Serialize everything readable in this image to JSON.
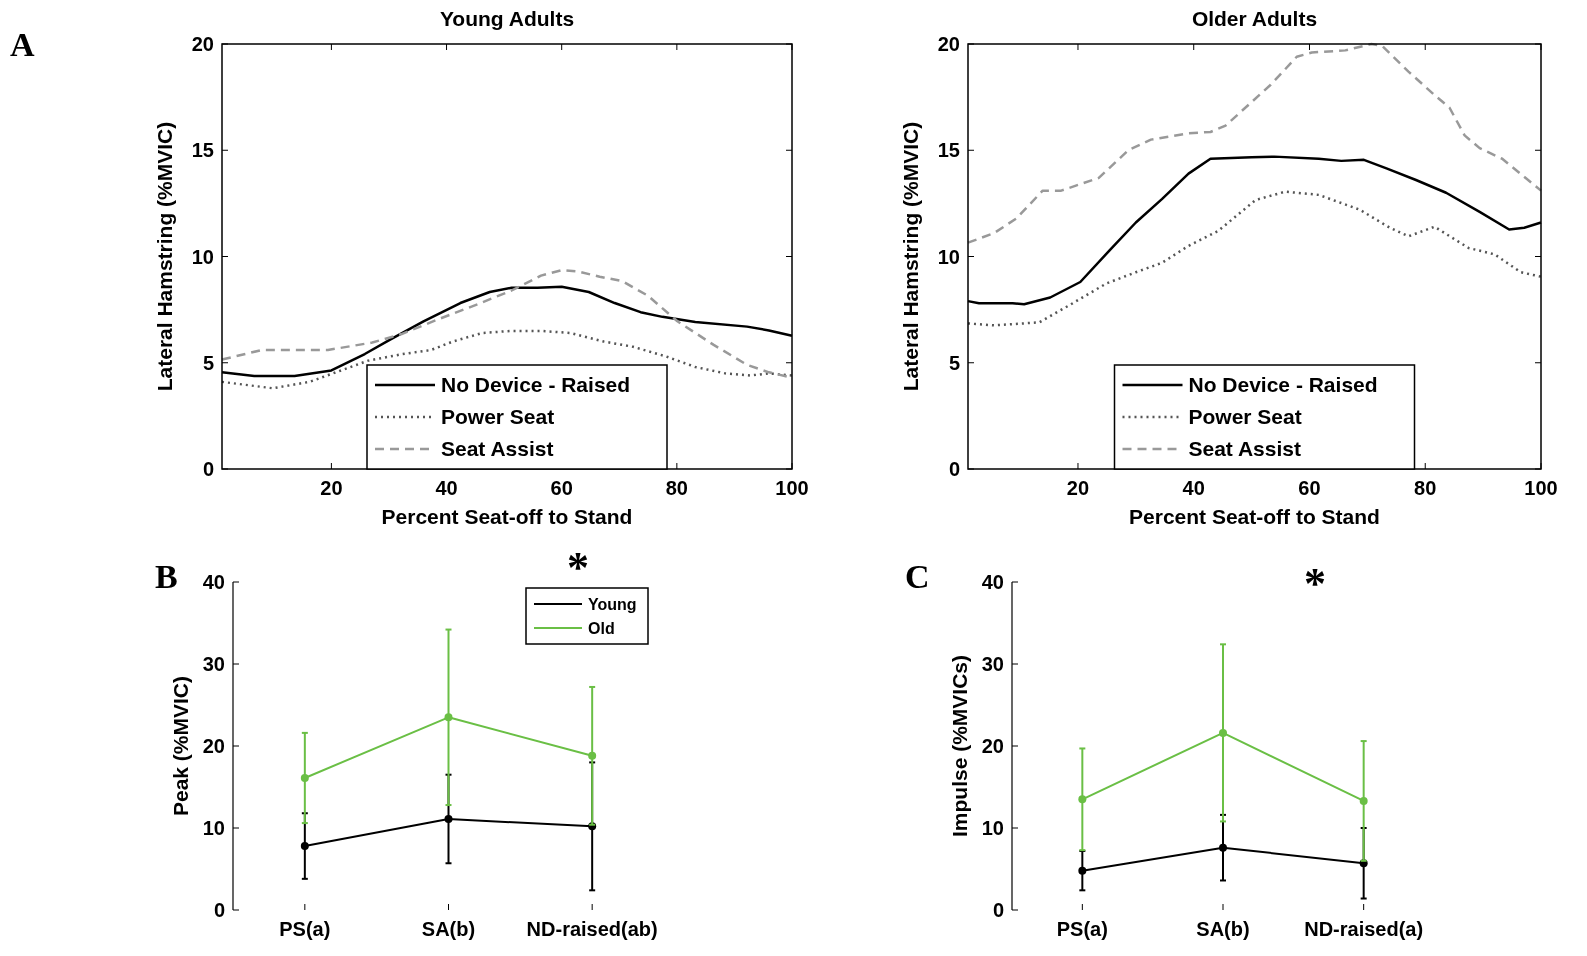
{
  "chart_data": [
    {
      "type": "line",
      "title": "Young Adults",
      "xlabel": "Percent Seat-off to Stand",
      "ylabel": "Lateral Hamstring (%MVIC)",
      "xlim": [
        1,
        100
      ],
      "ylim": [
        0,
        20
      ],
      "xticks": [
        20,
        40,
        60,
        80,
        100
      ],
      "yticks": [
        0,
        5,
        10,
        15,
        20
      ],
      "legend": "bottom",
      "annotations": [
        "A"
      ],
      "series": [
        {
          "name": "No Device - Raised",
          "color": "#000000",
          "line_style": "solid",
          "x": [
            1,
            6.6,
            13.6,
            20,
            25.8,
            30.2,
            36,
            42.4,
            47.5,
            51.3,
            55.8,
            60,
            64.7,
            69.2,
            73.7,
            77.5,
            83.2,
            92.2,
            96,
            100
          ],
          "values": [
            4.55,
            4.38,
            4.38,
            4.64,
            5.41,
            6.09,
            6.95,
            7.81,
            8.33,
            8.53,
            8.53,
            8.58,
            8.33,
            7.81,
            7.38,
            7.16,
            6.92,
            6.7,
            6.52,
            6.27
          ]
        },
        {
          "name": "Power Seat",
          "color": "#555555",
          "line_style": "dotted",
          "x": [
            1,
            9.8,
            16.2,
            21.3,
            26.4,
            32.2,
            37.3,
            41.1,
            46.2,
            51.3,
            56.4,
            61.5,
            67.3,
            72.4,
            78.1,
            83.2,
            88.4,
            92.8,
            96,
            100
          ],
          "values": [
            4.1,
            3.8,
            4.1,
            4.6,
            5.1,
            5.4,
            5.6,
            6,
            6.4,
            6.5,
            6.5,
            6.4,
            6,
            5.75,
            5.3,
            4.8,
            4.5,
            4.4,
            4.5,
            4.4
          ]
        },
        {
          "name": "Seat Assist",
          "color": "#999999",
          "line_style": "dashed",
          "x": [
            1,
            7.9,
            19.4,
            27.1,
            32.2,
            38.5,
            44.9,
            51.3,
            56.4,
            60,
            62.8,
            66.6,
            70.5,
            75,
            80.1,
            86.4,
            92.2,
            96,
            100
          ],
          "values": [
            5.15,
            5.6,
            5.6,
            5.95,
            6.35,
            7.04,
            7.7,
            8.4,
            9.1,
            9.36,
            9.3,
            9.05,
            8.84,
            8.15,
            6.95,
            5.84,
            4.9,
            4.55,
            4.3
          ]
        }
      ]
    },
    {
      "type": "line",
      "title": "Older Adults",
      "xlabel": "Percent Seat-off to Stand",
      "ylabel": "Lateral Hamstring (%MVIC)",
      "xlim": [
        1,
        100
      ],
      "ylim": [
        0,
        20
      ],
      "xticks": [
        20,
        40,
        60,
        80,
        100
      ],
      "yticks": [
        0,
        5,
        10,
        15,
        20
      ],
      "legend": "bottom",
      "series": [
        {
          "name": "No Device - Raised",
          "color": "#000000",
          "line_style": "solid",
          "x": [
            1,
            2.9,
            8.7,
            10.7,
            15.2,
            20.4,
            25.5,
            30,
            34.5,
            39.1,
            42.9,
            50,
            53.9,
            61.6,
            65.5,
            69.4,
            73.3,
            78.4,
            83.6,
            89.4,
            94.5,
            97.1,
            100
          ],
          "values": [
            7.9,
            7.8,
            7.8,
            7.75,
            8.07,
            8.8,
            10.3,
            11.6,
            12.7,
            13.9,
            14.6,
            14.67,
            14.7,
            14.6,
            14.5,
            14.55,
            14.15,
            13.6,
            13,
            12.1,
            11.27,
            11.35,
            11.6
          ]
        },
        {
          "name": "Power Seat",
          "color": "#555555",
          "line_style": "dotted",
          "x": [
            1,
            5.5,
            13.3,
            18.4,
            24.9,
            30,
            34.5,
            39.1,
            44.2,
            50.7,
            55.8,
            61.6,
            68.7,
            73.9,
            77.1,
            81.6,
            87.5,
            92,
            96.5,
            100
          ],
          "values": [
            6.85,
            6.76,
            6.9,
            7.69,
            8.73,
            9.26,
            9.7,
            10.5,
            11.2,
            12.66,
            13.05,
            12.9,
            12.2,
            11.35,
            10.95,
            11.4,
            10.4,
            10.1,
            9.26,
            9.05
          ]
        },
        {
          "name": "Seat Assist",
          "color": "#999999",
          "line_style": "dashed",
          "x": [
            1,
            5.5,
            9.4,
            13.9,
            17.1,
            23.6,
            28.7,
            32.6,
            39.1,
            42.9,
            45.5,
            53.3,
            57.8,
            60.4,
            66.2,
            70.7,
            72.6,
            77.1,
            81.6,
            84.2,
            86.8,
            89.4,
            93.3,
            100
          ],
          "values": [
            10.65,
            11.1,
            11.8,
            13.1,
            13.1,
            13.7,
            15,
            15.5,
            15.8,
            15.86,
            16.16,
            18.08,
            19.4,
            19.6,
            19.7,
            20,
            19.9,
            18.7,
            17.6,
            17,
            15.7,
            15.1,
            14.6,
            13.1
          ]
        }
      ]
    },
    {
      "type": "line",
      "ylabel": "Peak (%MVIC)",
      "categories": [
        "PS(a)",
        "SA(b)",
        "ND-raised(ab)"
      ],
      "ylim": [
        0,
        40
      ],
      "yticks": [
        0,
        10,
        20,
        30,
        40
      ],
      "legend": "top right",
      "marker": "circle",
      "annotations": [
        "B",
        "*"
      ],
      "series": [
        {
          "name": "Young",
          "color": "#000000",
          "values": [
            7.8,
            11.1,
            10.2
          ],
          "errors": [
            4,
            5.4,
            7.8
          ]
        },
        {
          "name": "Old",
          "color": "#6abf45",
          "values": [
            16.1,
            23.5,
            18.8
          ],
          "errors": [
            5.5,
            10.7,
            8.4
          ]
        }
      ]
    },
    {
      "type": "line",
      "ylabel": "Impulse (%MVICs)",
      "categories": [
        "PS(a)",
        "SA(b)",
        "ND-raised(a)"
      ],
      "ylim": [
        0,
        40
      ],
      "yticks": [
        0,
        10,
        20,
        30,
        40
      ],
      "legend": false,
      "marker": "circle",
      "annotations": [
        "C",
        "*"
      ],
      "series": [
        {
          "color": "#000000",
          "values": [
            4.8,
            7.6,
            5.7
          ],
          "errors": [
            2.4,
            4,
            4.3
          ]
        },
        {
          "color": "#6abf45",
          "values": [
            13.5,
            21.6,
            13.3
          ],
          "errors": [
            6.2,
            10.8,
            7.3
          ]
        }
      ]
    }
  ]
}
